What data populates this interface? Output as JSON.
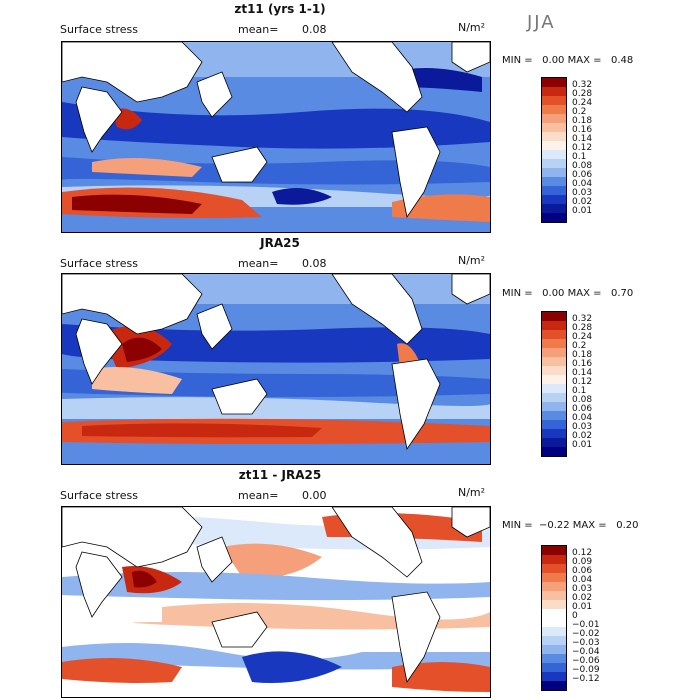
{
  "season": "JJA",
  "panels": [
    {
      "title": "zt11 (yrs 1-1)",
      "left_label": "Surface stress",
      "mean_label": "mean=",
      "mean_value": "0.08",
      "units": "N/m²",
      "minmax": "MIN =   0.00 MAX =   0.48",
      "colorbar": {
        "labels": [
          "0.32",
          "0.28",
          "0.24",
          "0.2",
          "0.18",
          "0.16",
          "0.14",
          "0.12",
          "0.1",
          "0.08",
          "0.06",
          "0.04",
          "0.03",
          "0.02",
          "0.01"
        ],
        "colors": [
          "#8b0000",
          "#c8280f",
          "#e4502a",
          "#ef7a4a",
          "#f5a07a",
          "#f8c0a0",
          "#fbdcc8",
          "#fdf2ea",
          "#dce9fb",
          "#b8d2f6",
          "#8fb4ee",
          "#5a8be3",
          "#3464d6",
          "#1838c0",
          "#0a1a9a",
          "#000080"
        ]
      }
    },
    {
      "title": "JRA25",
      "left_label": "Surface stress",
      "mean_label": "mean=",
      "mean_value": "0.08",
      "units": "N/m²",
      "minmax": "MIN =   0.00 MAX =   0.70",
      "colorbar": {
        "labels": [
          "0.32",
          "0.28",
          "0.24",
          "0.2",
          "0.18",
          "0.16",
          "0.14",
          "0.12",
          "0.1",
          "0.08",
          "0.06",
          "0.04",
          "0.03",
          "0.02",
          "0.01"
        ],
        "colors": [
          "#8b0000",
          "#c8280f",
          "#e4502a",
          "#ef7a4a",
          "#f5a07a",
          "#f8c0a0",
          "#fbdcc8",
          "#fdf2ea",
          "#dce9fb",
          "#b8d2f6",
          "#8fb4ee",
          "#5a8be3",
          "#3464d6",
          "#1838c0",
          "#0a1a9a",
          "#000080"
        ]
      }
    },
    {
      "title": "zt11 - JRA25",
      "left_label": "Surface stress",
      "mean_label": "mean=",
      "mean_value": "0.00",
      "units": "N/m²",
      "minmax": "MIN =  −0.22 MAX =   0.20",
      "colorbar": {
        "labels": [
          "0.12",
          "0.09",
          "0.06",
          "0.04",
          "0.03",
          "0.02",
          "0.01",
          "0",
          "−0.01",
          "−0.02",
          "−0.03",
          "−0.04",
          "−0.06",
          "−0.09",
          "−0.12"
        ],
        "colors": [
          "#8b0000",
          "#c8280f",
          "#e4502a",
          "#ef7a4a",
          "#f5a07a",
          "#f8c0a0",
          "#fbdcc8",
          "#ffffff",
          "#ffffff",
          "#dce9fb",
          "#b8d2f6",
          "#8fb4ee",
          "#5a8be3",
          "#3464d6",
          "#1838c0",
          "#000080"
        ]
      }
    }
  ]
}
